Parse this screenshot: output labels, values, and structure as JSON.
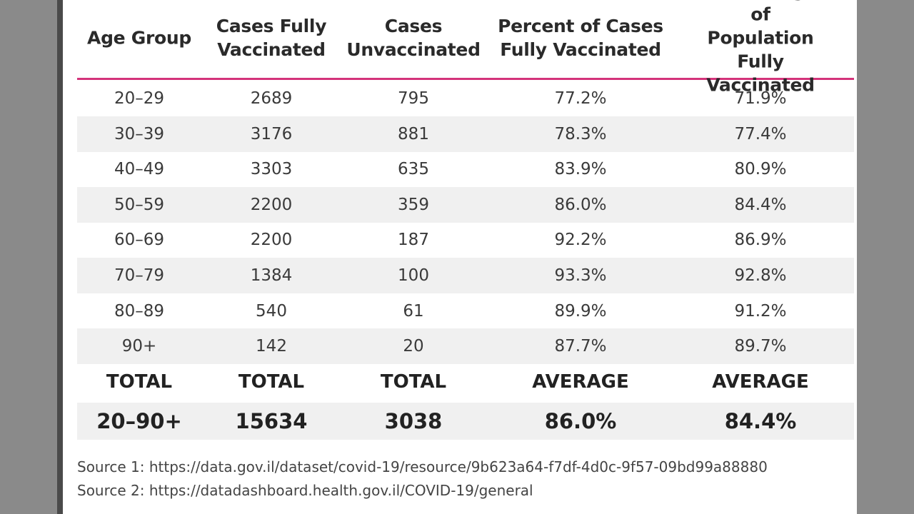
{
  "table": {
    "header": [
      "Age Group",
      "Cases Fully\nVaccinated",
      "Cases\nUnvaccinated",
      "Percent of Cases\nFully Vaccinated",
      "Percentage of\nPopulation Fully\nVaccinated"
    ],
    "rows": [
      [
        "20–29",
        "2689",
        "795",
        "77.2%",
        "71.9%"
      ],
      [
        "30–39",
        "3176",
        "881",
        "78.3%",
        "77.4%"
      ],
      [
        "40–49",
        "3303",
        "635",
        "83.9%",
        "80.9%"
      ],
      [
        "50–59",
        "2200",
        "359",
        "86.0%",
        "84.4%"
      ],
      [
        "60–69",
        "2200",
        "187",
        "92.2%",
        "86.9%"
      ],
      [
        "70–79",
        "1384",
        "100",
        "93.3%",
        "92.8%"
      ],
      [
        "80–89",
        "540",
        "61",
        "89.9%",
        "91.2%"
      ],
      [
        "90+",
        "142",
        "20",
        "87.7%",
        "89.7%"
      ]
    ],
    "summary_labels": [
      "TOTAL",
      "TOTAL",
      "TOTAL",
      "AVERAGE",
      "AVERAGE"
    ],
    "summary_values": [
      "20–90+",
      "15634",
      "3038",
      "86.0%",
      "84.4%"
    ]
  },
  "sources": [
    "Source 1: https://data.gov.il/dataset/covid-19/resource/9b623a64-f7df-4d0c-9f57-09bd99a88880",
    "Source 2: https://datadashboard.health.gov.il/COVID-19/general"
  ]
}
